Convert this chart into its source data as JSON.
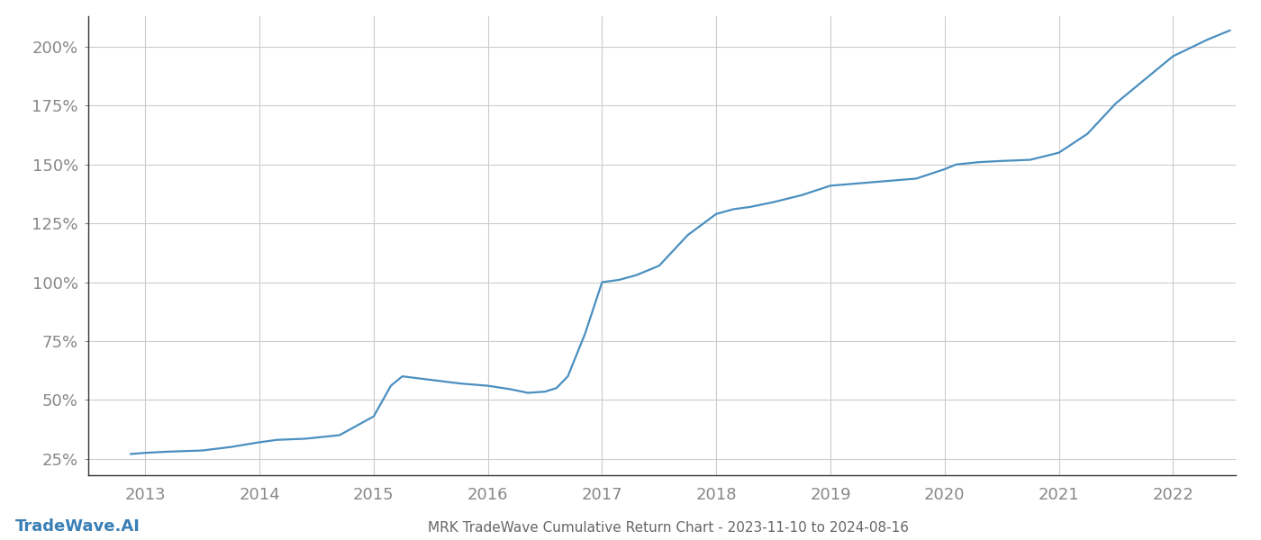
{
  "title": "MRK TradeWave Cumulative Return Chart - 2023-11-10 to 2024-08-16",
  "watermark": "TradeWave.AI",
  "line_color": "#4a8fc0",
  "background_color": "#ffffff",
  "grid_color": "#cccccc",
  "tick_color": "#888888",
  "title_color": "#666666",
  "watermark_color": "#3a7fb5",
  "x_years": [
    2013,
    2014,
    2015,
    2016,
    2017,
    2018,
    2019,
    2020,
    2021,
    2022
  ],
  "y_ticks": [
    25,
    50,
    75,
    100,
    125,
    150,
    175,
    200
  ],
  "xlim": [
    2012.5,
    2022.55
  ],
  "ylim": [
    18,
    213
  ],
  "data_x": [
    2012.87,
    2013.0,
    2013.2,
    2013.5,
    2013.75,
    2014.0,
    2014.15,
    2014.4,
    2014.7,
    2015.0,
    2015.15,
    2015.25,
    2015.5,
    2015.75,
    2016.0,
    2016.2,
    2016.35,
    2016.5,
    2016.6,
    2016.7,
    2016.85,
    2017.0,
    2017.15,
    2017.3,
    2017.5,
    2017.75,
    2018.0,
    2018.15,
    2018.3,
    2018.5,
    2018.75,
    2019.0,
    2019.25,
    2019.5,
    2019.75,
    2020.0,
    2020.1,
    2020.3,
    2020.5,
    2020.75,
    2021.0,
    2021.25,
    2021.5,
    2021.75,
    2022.0,
    2022.3,
    2022.5
  ],
  "data_y": [
    27,
    27.5,
    28.0,
    28.5,
    30,
    32,
    33,
    33.5,
    35,
    43,
    56,
    60,
    58.5,
    57,
    56,
    54.5,
    53,
    53.5,
    55,
    60,
    78,
    100,
    101,
    103,
    107,
    120,
    129,
    131,
    132,
    134,
    137,
    141,
    142,
    143,
    144,
    148,
    150,
    151,
    151.5,
    152,
    155,
    163,
    176,
    186,
    196,
    203,
    207
  ],
  "title_fontsize": 11,
  "tick_fontsize": 13,
  "watermark_fontsize": 13,
  "line_width": 1.6
}
